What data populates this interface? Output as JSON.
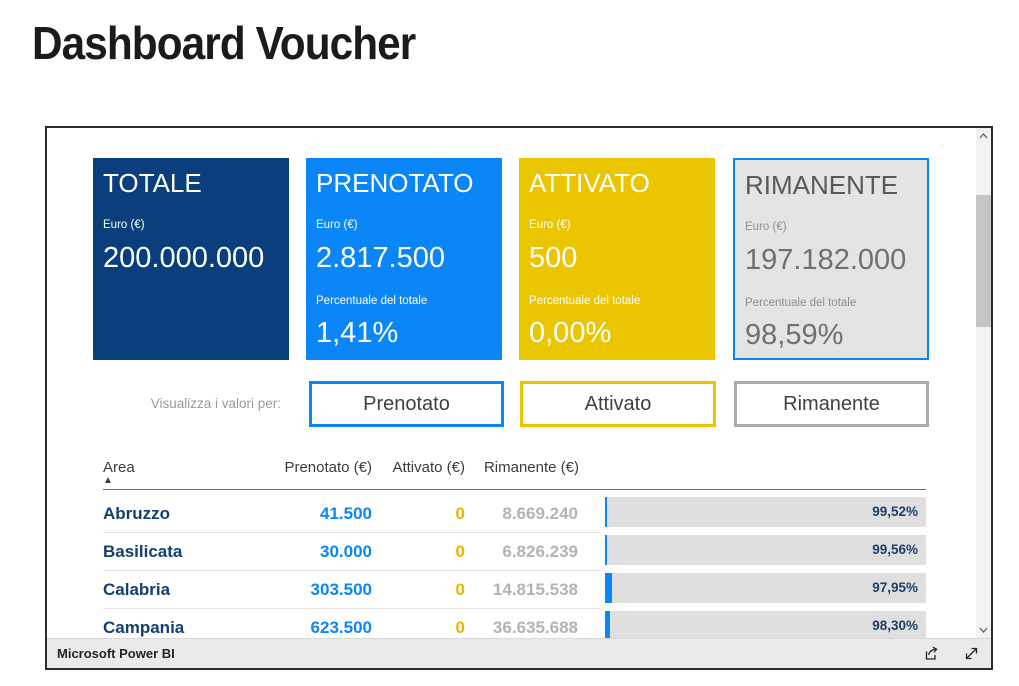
{
  "page": {
    "title": "Dashboard Voucher"
  },
  "colors": {
    "navy": "#0A3E7D",
    "blue": "#0A86F8",
    "yellow": "#EBC500",
    "card-gray": "#E4E4E4",
    "btn-gray": "#ABABAB",
    "area-text": "#143F70",
    "attivato-val": "#E9B400",
    "rimanente-val": "#B3B3B3",
    "bar-gray": "#DFDFDF",
    "pct-text": "#1C3F6E",
    "footer-bg": "#EAEAEA",
    "frame-border": "#2B2B2B"
  },
  "cards": [
    {
      "title": "TOTALE",
      "metric_label": "Euro (€)",
      "metric_value": "200.000.000"
    },
    {
      "title": "PRENOTATO",
      "metric_label": "Euro (€)",
      "metric_value": "2.817.500",
      "pct_label": "Percentuale del totale",
      "pct_value": "1,41%"
    },
    {
      "title": "ATTIVATO",
      "metric_label": "Euro (€)",
      "metric_value": "500",
      "pct_label": "Percentuale del totale",
      "pct_value": "0,00%"
    },
    {
      "title": "RIMANENTE",
      "metric_label": "Euro (€)",
      "metric_value": "197.182.000",
      "pct_label": "Percentuale del totale",
      "pct_value": "98,59%"
    }
  ],
  "filter": {
    "label": "Visualizza i valori per:",
    "buttons": [
      {
        "label": "Prenotato"
      },
      {
        "label": "Attivato"
      },
      {
        "label": "Rimanente"
      }
    ]
  },
  "table": {
    "columns": {
      "area": "Area",
      "prenotato": "Prenotato (€)",
      "attivato": "Attivato (€)",
      "rimanente": "Rimanente (€)"
    },
    "rows": [
      {
        "area": "Abruzzo",
        "prenotato": "41.500",
        "attivato": "0",
        "rimanente": "8.669.240",
        "pct": "99,52%",
        "pct_num": 99.52
      },
      {
        "area": "Basilicata",
        "prenotato": "30.000",
        "attivato": "0",
        "rimanente": "6.826.239",
        "pct": "99,56%",
        "pct_num": 99.56
      },
      {
        "area": "Calabria",
        "prenotato": "303.500",
        "attivato": "0",
        "rimanente": "14.815.538",
        "pct": "97,95%",
        "pct_num": 97.95
      },
      {
        "area": "Campania",
        "prenotato": "623.500",
        "attivato": "0",
        "rimanente": "36.635.688",
        "pct": "98,30%",
        "pct_num": 98.3
      }
    ]
  },
  "footer": {
    "brand": "Microsoft Power BI"
  }
}
